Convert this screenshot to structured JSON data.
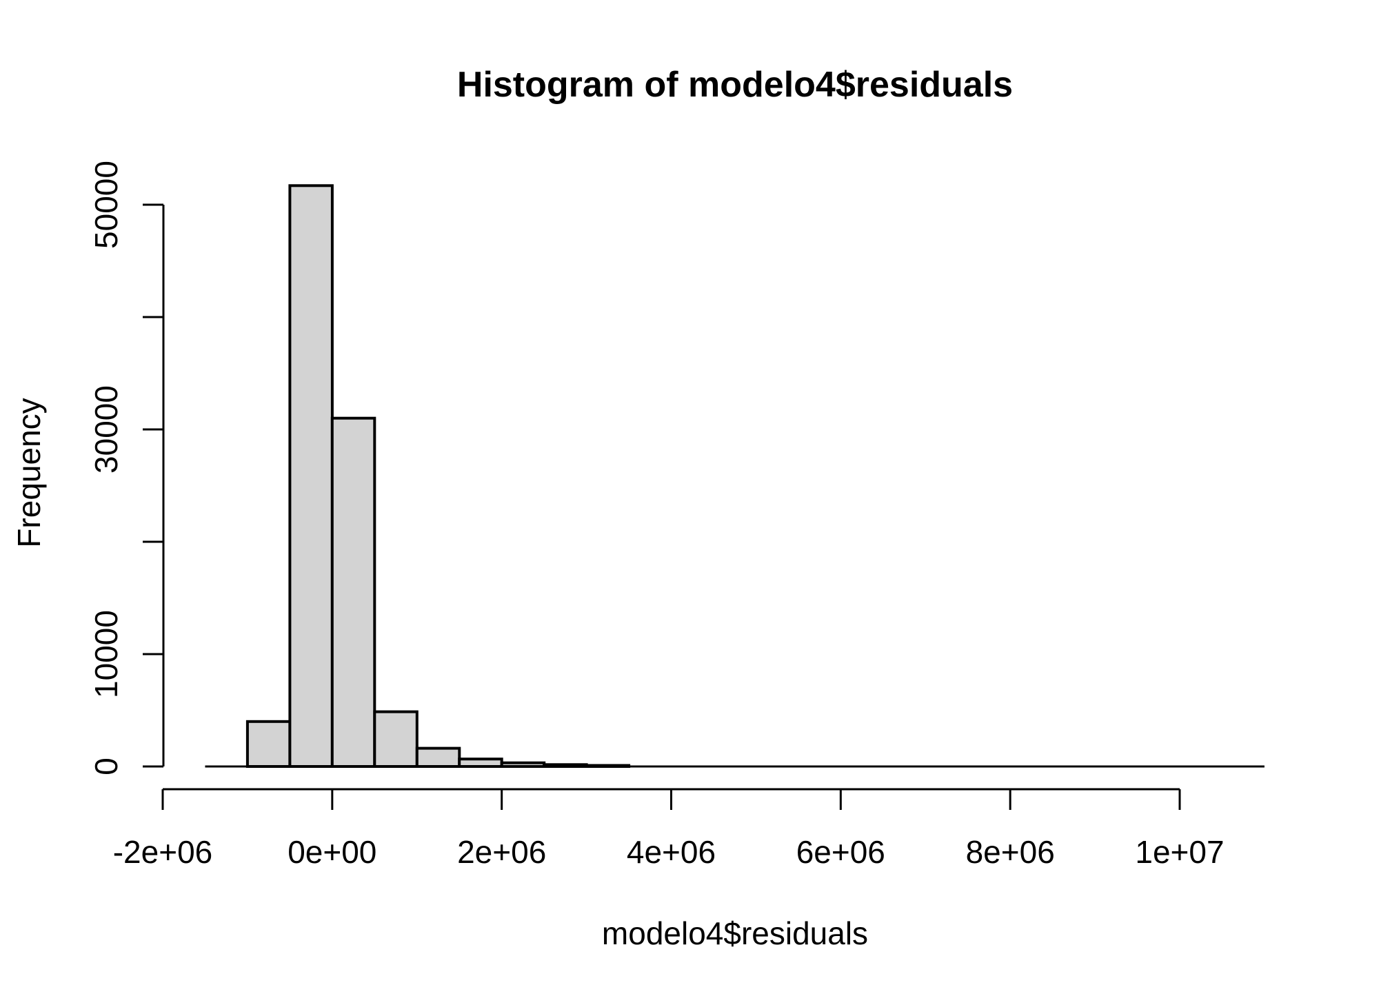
{
  "page": {
    "background": "#ffffff"
  },
  "chart_data": {
    "type": "bar",
    "subtype": "histogram",
    "title": "Histogram of modelo4$residuals",
    "xlabel": "modelo4$residuals",
    "ylabel": "Frequency",
    "xlim": [
      -2000000,
      10000000
    ],
    "ylim": [
      0,
      50000
    ],
    "grid": false,
    "legend": false,
    "bar_fill": "#d3d3d3",
    "bar_stroke": "#000000",
    "axis_color": "#000000",
    "bin_width": 500000,
    "bin_breaks": [
      -1500000,
      -1000000,
      -500000,
      0,
      500000,
      1000000,
      1500000,
      2000000,
      2500000,
      3000000,
      3500000,
      4000000,
      4500000,
      5000000,
      5500000,
      6000000,
      6500000,
      7000000,
      7500000,
      8000000,
      8500000,
      9000000,
      9500000,
      10000000,
      10500000,
      11000000
    ],
    "bin_counts": [
      0,
      4000,
      51700,
      31000,
      4870,
      1620,
      660,
      325,
      165,
      90,
      0,
      0,
      0,
      0,
      0,
      0,
      0,
      0,
      0,
      0,
      0,
      0,
      0,
      0,
      0
    ],
    "x_ticks": [
      {
        "value": -2000000,
        "label": "-2e+06"
      },
      {
        "value": 0,
        "label": "0e+00"
      },
      {
        "value": 2000000,
        "label": "2e+06"
      },
      {
        "value": 4000000,
        "label": "4e+06"
      },
      {
        "value": 6000000,
        "label": "6e+06"
      },
      {
        "value": 8000000,
        "label": "8e+06"
      },
      {
        "value": 10000000,
        "label": "1e+07"
      }
    ],
    "y_ticks": [
      {
        "value": 0,
        "label": "0"
      },
      {
        "value": 10000,
        "label": "10000"
      },
      {
        "value": 20000,
        "label": ""
      },
      {
        "value": 30000,
        "label": "30000"
      },
      {
        "value": 40000,
        "label": ""
      },
      {
        "value": 50000,
        "label": "50000"
      }
    ]
  }
}
